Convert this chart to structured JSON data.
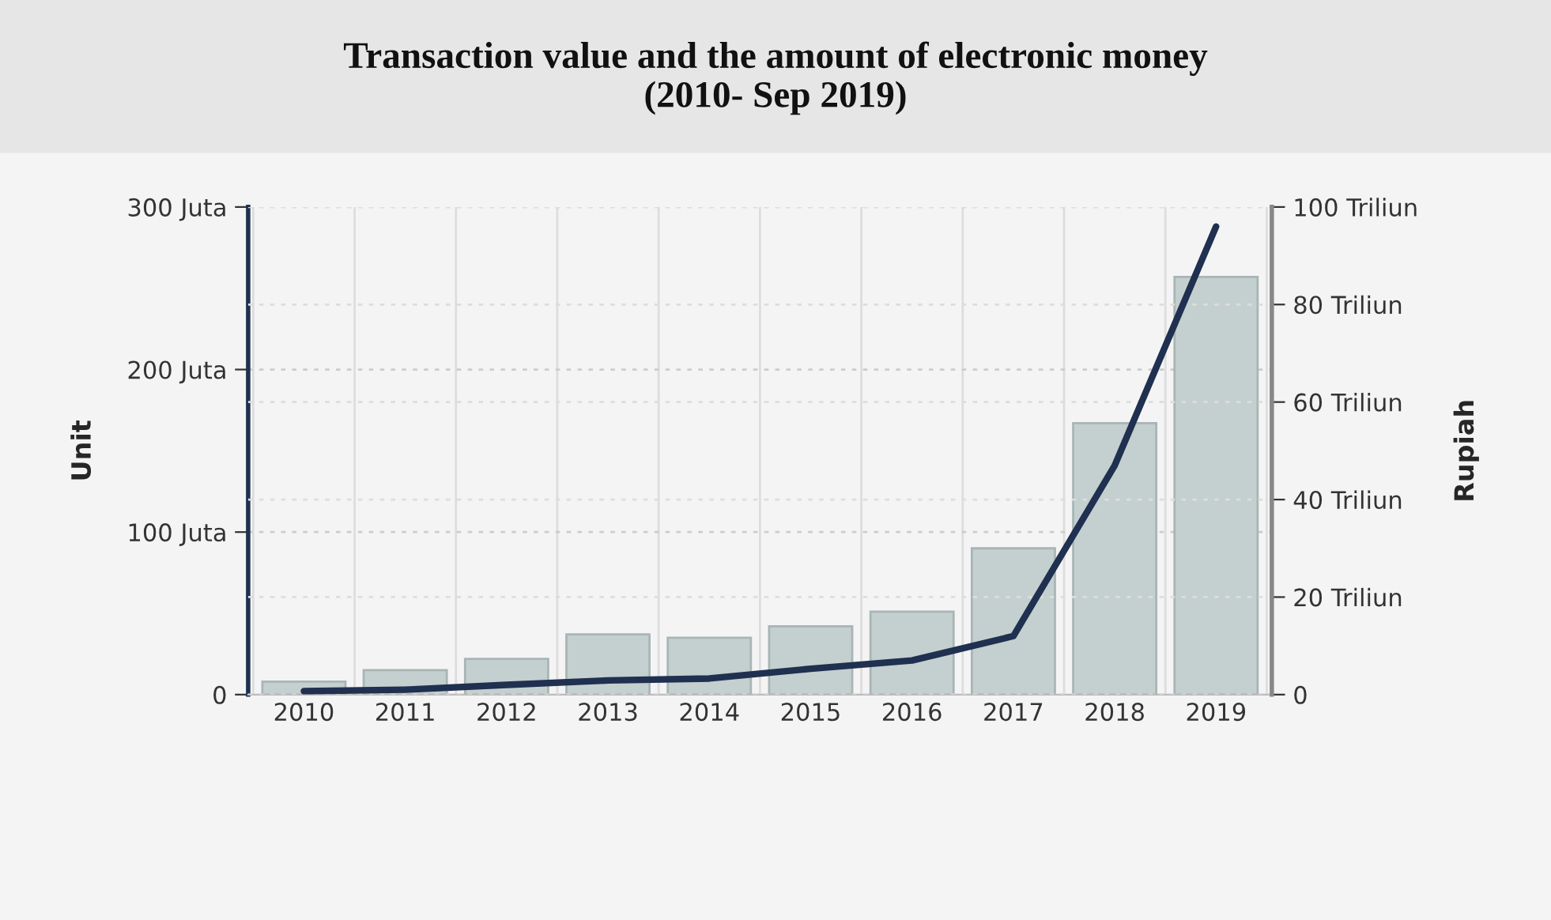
{
  "chart_data": {
    "type": "bar",
    "title": "Transaction value and the amount of electronic money\n(2010- Sep 2019)",
    "categories": [
      "2010",
      "2011",
      "2012",
      "2013",
      "2014",
      "2015",
      "2016",
      "2017",
      "2018",
      "2019"
    ],
    "series": [
      {
        "color": "#c4cfcf",
        "values": [
          8,
          15,
          22,
          37,
          35,
          42,
          51,
          90,
          167,
          257
        ]
      },
      {
        "type": "line",
        "axis": "y2",
        "color": "#1f3050",
        "values": [
          0.7,
          1.0,
          2.0,
          2.9,
          3.3,
          5.3,
          7.0,
          12.0,
          47,
          96
        ]
      }
    ],
    "ylabel": "Unit",
    "y2label": "Rupiah",
    "ylim": [
      0,
      300
    ],
    "yticks": [
      0,
      {
        "value": 100,
        "label": "100 Juta"
      },
      {
        "value": 200,
        "label": "200 Juta"
      },
      {
        "value": 300,
        "label": "300 Juta"
      }
    ],
    "y2lim": [
      0,
      100
    ],
    "y2ticks": [
      0,
      {
        "value": 20,
        "label": "20 Triliun"
      },
      {
        "value": 40,
        "label": "40 Triliun"
      },
      {
        "value": 60,
        "label": "60 Triliun"
      },
      {
        "value": 80,
        "label": "80 Triliun"
      },
      {
        "value": 100,
        "label": "100 Triliun"
      }
    ],
    "grid": true,
    "marker": "none",
    "line_style": "solid"
  }
}
